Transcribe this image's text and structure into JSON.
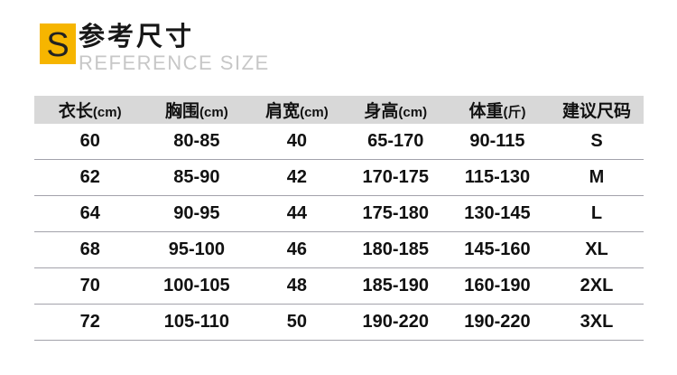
{
  "header": {
    "badge_letter": "S",
    "badge_color": "#f6b500",
    "title_cn": "参考尺寸",
    "title_en": "REFERENCE SIZE"
  },
  "table": {
    "header_bg": "#d8d8d8",
    "separator_color": "#a3a2ab",
    "columns": [
      {
        "label": "衣长",
        "unit": "(cm)"
      },
      {
        "label": "胸围",
        "unit": "(cm)"
      },
      {
        "label": "肩宽",
        "unit": "(cm)"
      },
      {
        "label": "身高",
        "unit": "(cm)"
      },
      {
        "label": "体重",
        "unit": "(斤)"
      },
      {
        "label": "建议尺码",
        "unit": ""
      }
    ],
    "rows": [
      [
        "60",
        "80-85",
        "40",
        "65-170",
        "90-115",
        "S"
      ],
      [
        "62",
        "85-90",
        "42",
        "170-175",
        "115-130",
        "M"
      ],
      [
        "64",
        "90-95",
        "44",
        "175-180",
        "130-145",
        "L"
      ],
      [
        "68",
        "95-100",
        "46",
        "180-185",
        "145-160",
        "XL"
      ],
      [
        "70",
        "100-105",
        "48",
        "185-190",
        "160-190",
        "2XL"
      ],
      [
        "72",
        "105-110",
        "50",
        "190-220",
        "190-220",
        "3XL"
      ]
    ]
  }
}
